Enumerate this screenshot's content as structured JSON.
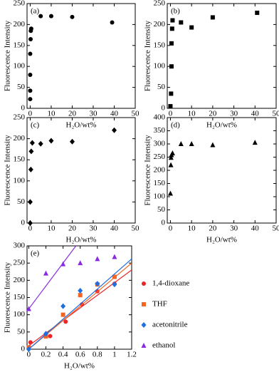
{
  "chart_data": [
    {
      "type": "scatter",
      "label": "(a)",
      "xlabel": "H₂O/wt%",
      "ylabel": "Fluorescence Intensity",
      "xlim": [
        -1.5,
        50
      ],
      "xticks": [
        0,
        10,
        20,
        30,
        40,
        50
      ],
      "ylim": [
        0,
        250
      ],
      "yticks": [
        0,
        50,
        100,
        150,
        200,
        250
      ],
      "marker": "circle",
      "color": "#000000",
      "x": [
        0,
        0,
        0,
        0,
        0.2,
        0.3,
        0.5,
        5,
        10,
        20,
        39
      ],
      "values": [
        22,
        42,
        80,
        130,
        165,
        185,
        190,
        220,
        220,
        218,
        205
      ]
    },
    {
      "type": "scatter",
      "label": "(b)",
      "xlabel": "H₂O/wt%",
      "ylabel": "Fluorescence Intensity",
      "xlim": [
        -1.5,
        50
      ],
      "xticks": [
        0,
        10,
        20,
        30,
        40,
        50
      ],
      "ylim": [
        0,
        250
      ],
      "yticks": [
        0,
        50,
        100,
        150,
        200,
        250
      ],
      "marker": "square",
      "color": "#000000",
      "x": [
        0,
        0.3,
        0.5,
        0.5,
        0.8,
        1,
        5,
        10,
        20,
        41
      ],
      "values": [
        5,
        35,
        100,
        155,
        190,
        210,
        205,
        193,
        217,
        228
      ]
    },
    {
      "type": "scatter",
      "label": "(c)",
      "xlabel": "H₂O/wt%",
      "ylabel": "Fluorescence Intensity",
      "xlim": [
        -1.5,
        50
      ],
      "xticks": [
        0,
        10,
        20,
        30,
        40,
        50
      ],
      "ylim": [
        0,
        250
      ],
      "yticks": [
        0,
        50,
        100,
        150,
        200,
        250
      ],
      "marker": "diamond",
      "color": "#000000",
      "x": [
        0,
        0,
        0.3,
        0.5,
        1,
        5,
        10,
        20,
        40
      ],
      "values": [
        0,
        50,
        127,
        170,
        190,
        188,
        195,
        193,
        220
      ]
    },
    {
      "type": "scatter",
      "label": "(d)",
      "xlabel": "H₂O/wt%",
      "ylabel": "Fluorescence Intensity",
      "xlim": [
        -1.5,
        50
      ],
      "xticks": [
        0,
        10,
        20,
        30,
        40,
        50
      ],
      "ylim": [
        0,
        400
      ],
      "yticks": [
        0,
        50,
        100,
        150,
        200,
        250,
        300,
        350,
        400
      ],
      "marker": "triangle",
      "color": "#000000",
      "x": [
        0,
        0.2,
        0.3,
        0.5,
        1,
        5,
        10,
        20,
        40
      ],
      "values": [
        112,
        220,
        248,
        258,
        265,
        300,
        300,
        296,
        305
      ]
    },
    {
      "type": "scatter",
      "label": "(e)",
      "xlabel": "H₂O/wt%",
      "ylabel": "Fluorescence Intensity",
      "xlim": [
        -0.02,
        1.2
      ],
      "xticks": [
        0,
        0.2,
        0.4,
        0.6,
        0.8,
        1,
        1.2
      ],
      "ylim": [
        0,
        300
      ],
      "yticks": [
        0,
        50,
        100,
        150,
        200,
        250,
        300
      ],
      "series": [
        {
          "name": "1,4-dioxane",
          "color": "#e8262a",
          "marker": "circle",
          "x": [
            0.02,
            0.2,
            0.25,
            0.43,
            0.62,
            0.8,
            1.0
          ],
          "values": [
            20,
            37,
            38,
            80,
            130,
            168,
            190
          ],
          "fit_x": [
            0,
            1.2
          ],
          "fit_y": [
            10,
            230
          ]
        },
        {
          "name": "THF",
          "color": "#f26522",
          "marker": "square",
          "x": [
            0,
            0.2,
            0.4,
            0.6,
            0.8,
            1.0
          ],
          "values": [
            5,
            37,
            100,
            157,
            188,
            210
          ],
          "fit_x": [
            0,
            1.2
          ],
          "fit_y": [
            0,
            250
          ]
        },
        {
          "name": "acetonitrile",
          "color": "#1f6fe0",
          "marker": "diamond",
          "x": [
            0,
            0.2,
            0.4,
            0.6,
            0.8,
            1.0
          ],
          "values": [
            0,
            45,
            125,
            170,
            190,
            188
          ],
          "fit_x": [
            0,
            1.2
          ],
          "fit_y": [
            0,
            262
          ]
        },
        {
          "name": "ethanol",
          "color": "#8a2be2",
          "marker": "triangle",
          "x": [
            0,
            0.2,
            0.4,
            0.6,
            0.8,
            1.0
          ],
          "values": [
            117,
            220,
            247,
            250,
            262,
            268
          ],
          "fit_x": [
            0,
            0.55
          ],
          "fit_y": [
            117,
            300
          ]
        }
      ]
    }
  ]
}
